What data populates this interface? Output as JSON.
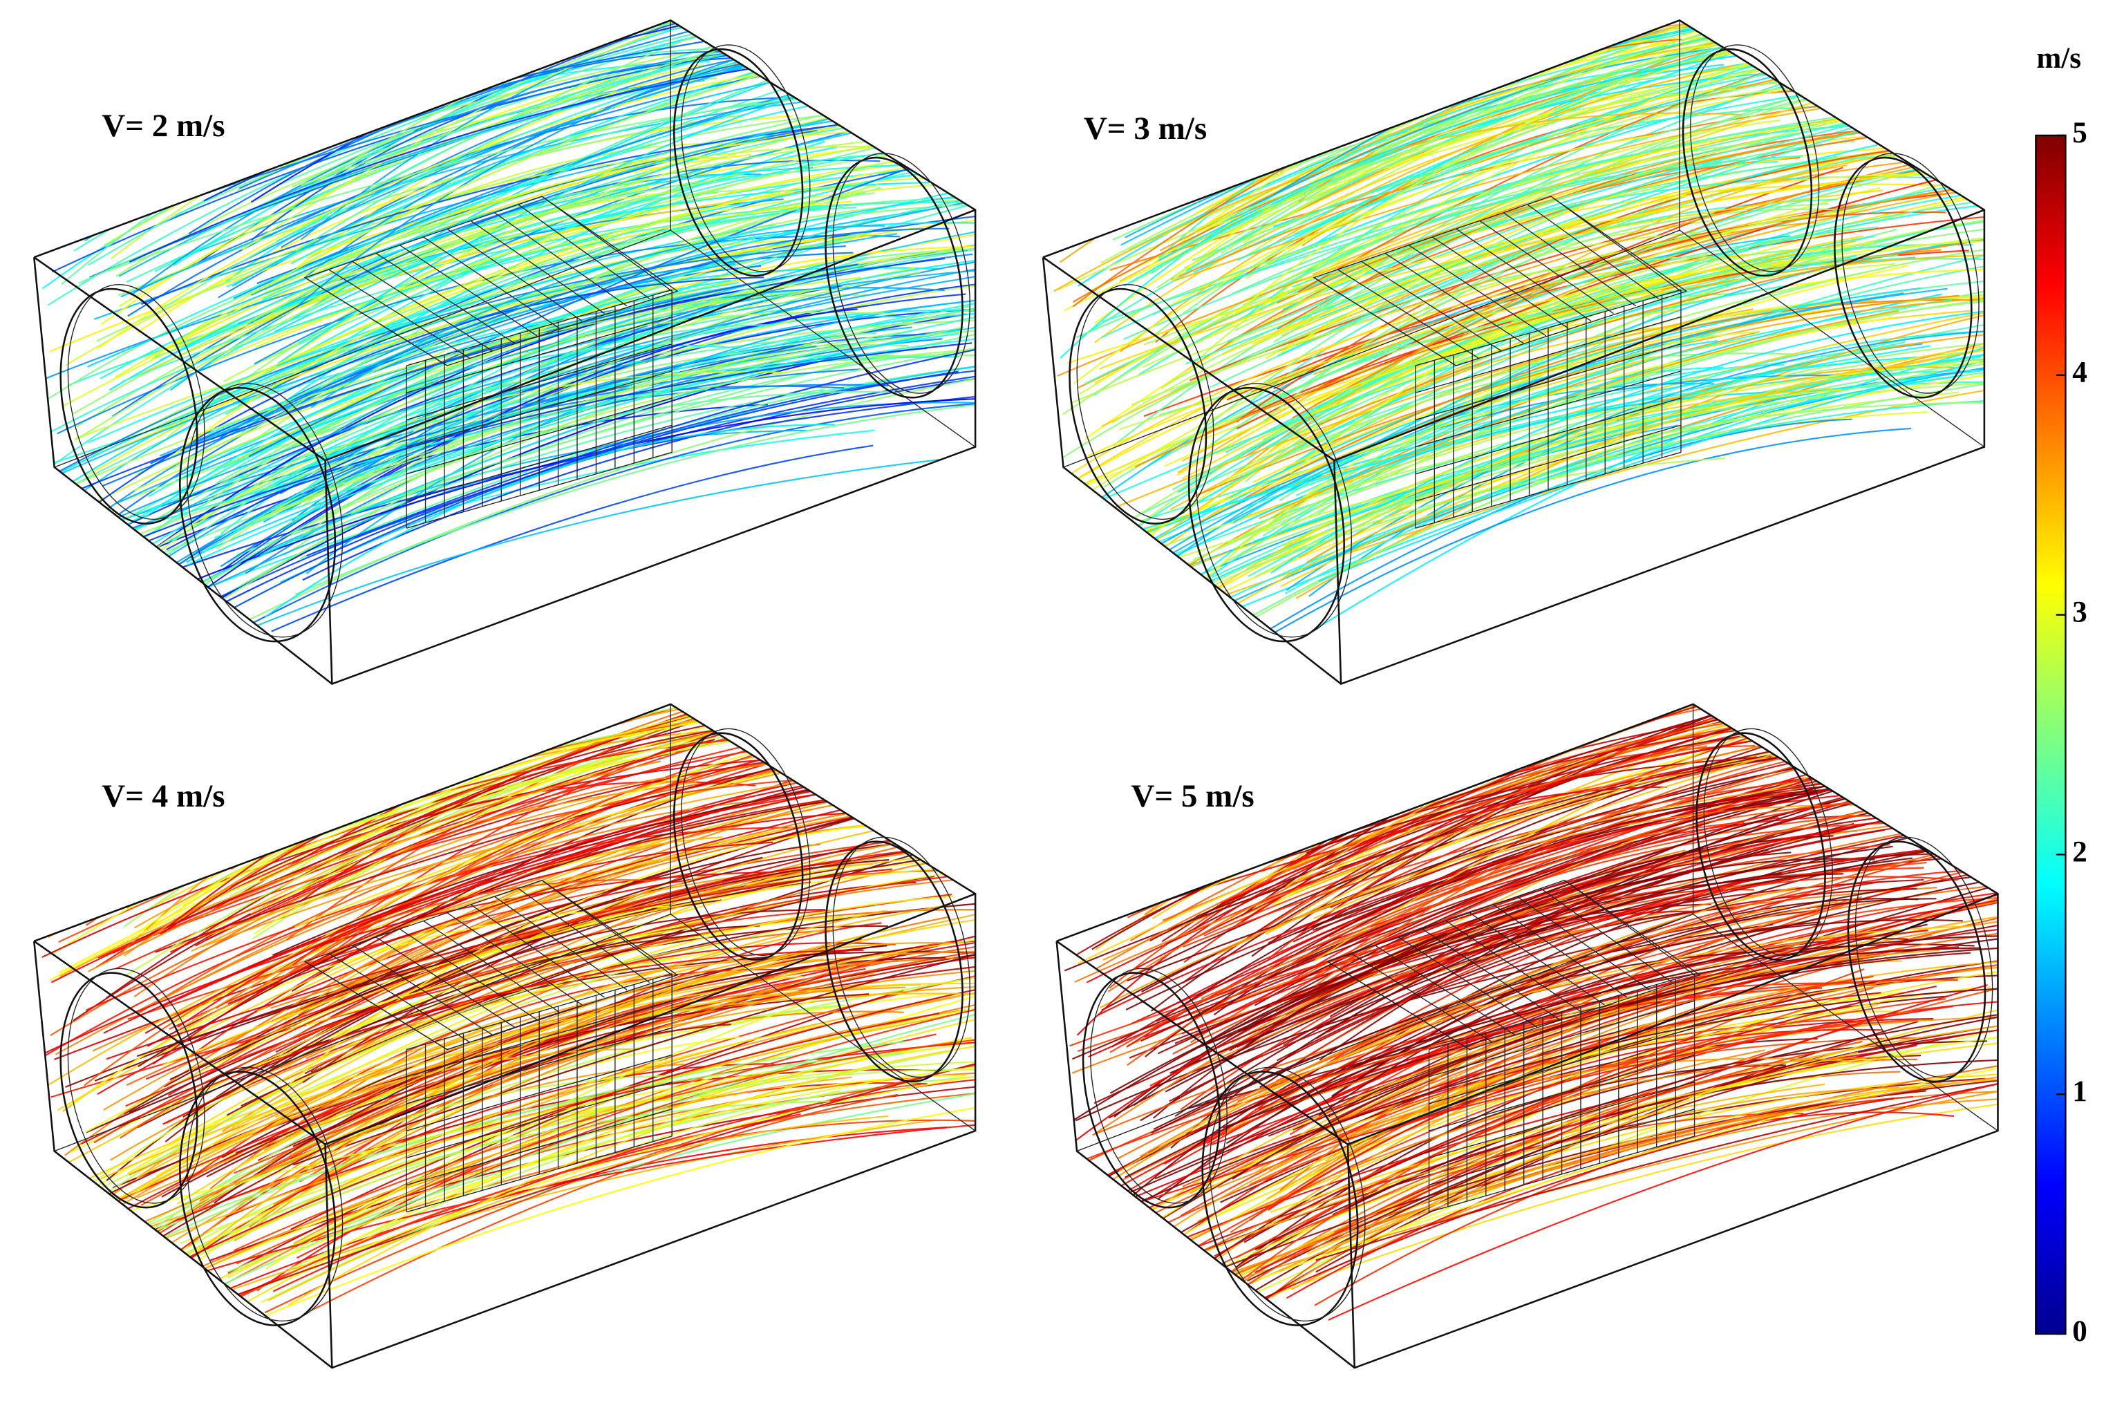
{
  "panels": [
    {
      "label": "V= 2 m/s"
    },
    {
      "label": "V= 3 m/s"
    },
    {
      "label": "V= 4 m/s"
    },
    {
      "label": "V= 5 m/s"
    }
  ],
  "colorbar": {
    "unit": "m/s",
    "lim": [
      0,
      5
    ],
    "ticks": [
      0,
      1,
      2,
      3,
      4,
      5
    ]
  }
}
